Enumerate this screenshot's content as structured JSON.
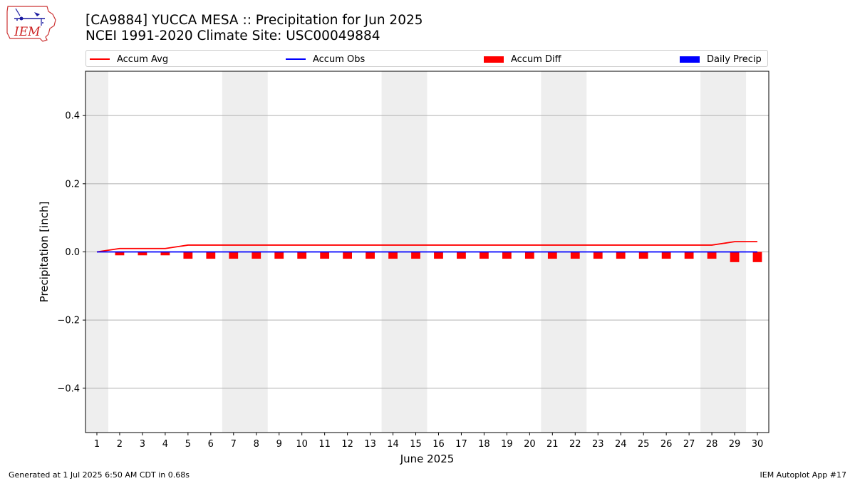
{
  "header": {
    "title_line1": "[CA9884] YUCCA MESA :: Precipitation for Jun 2025",
    "title_line2": "NCEI 1991-2020 Climate Site: USC00049884"
  },
  "logo": {
    "text": "IEM"
  },
  "legend": {
    "accum_avg": "Accum Avg",
    "accum_obs": "Accum Obs",
    "accum_diff": "Accum Diff",
    "daily_precip": "Daily Precip"
  },
  "colors": {
    "accum_avg": "#ff0000",
    "accum_obs": "#0000ff",
    "accum_diff": "#ff0000",
    "daily_precip": "#0000ff",
    "weekend_shade": "#eeeeee",
    "grid": "#b0b0b0"
  },
  "chart_data": {
    "type": "line",
    "xlabel": "June 2025",
    "ylabel": "Precipitation [inch]",
    "x": [
      1,
      2,
      3,
      4,
      5,
      6,
      7,
      8,
      9,
      10,
      11,
      12,
      13,
      14,
      15,
      16,
      17,
      18,
      19,
      20,
      21,
      22,
      23,
      24,
      25,
      26,
      27,
      28,
      29,
      30
    ],
    "xlim": [
      0.5,
      30.5
    ],
    "ylim": [
      -0.53,
      0.53
    ],
    "yticks": [
      -0.4,
      -0.2,
      0.0,
      0.2,
      0.4
    ],
    "ytick_labels": [
      "−0.4",
      "−0.2",
      "0.0",
      "0.2",
      "0.4"
    ],
    "grid": "horizontal",
    "legend_position": "top",
    "weekend_spans": [
      [
        0.5,
        1.5
      ],
      [
        6.5,
        8.5
      ],
      [
        13.5,
        15.5
      ],
      [
        20.5,
        22.5
      ],
      [
        27.5,
        29.5
      ]
    ],
    "series": [
      {
        "name": "Accum Avg",
        "kind": "line",
        "values": [
          0,
          0.01,
          0.01,
          0.01,
          0.02,
          0.02,
          0.02,
          0.02,
          0.02,
          0.02,
          0.02,
          0.02,
          0.02,
          0.02,
          0.02,
          0.02,
          0.02,
          0.02,
          0.02,
          0.02,
          0.02,
          0.02,
          0.02,
          0.02,
          0.02,
          0.02,
          0.02,
          0.02,
          0.03,
          0.03
        ]
      },
      {
        "name": "Accum Obs",
        "kind": "line",
        "values": [
          0,
          0,
          0,
          0,
          0,
          0,
          0,
          0,
          0,
          0,
          0,
          0,
          0,
          0,
          0,
          0,
          0,
          0,
          0,
          0,
          0,
          0,
          0,
          0,
          0,
          0,
          0,
          0,
          0,
          0
        ]
      },
      {
        "name": "Accum Diff",
        "kind": "bar",
        "values": [
          0,
          -0.01,
          -0.01,
          -0.01,
          -0.02,
          -0.02,
          -0.02,
          -0.02,
          -0.02,
          -0.02,
          -0.02,
          -0.02,
          -0.02,
          -0.02,
          -0.02,
          -0.02,
          -0.02,
          -0.02,
          -0.02,
          -0.02,
          -0.02,
          -0.02,
          -0.02,
          -0.02,
          -0.02,
          -0.02,
          -0.02,
          -0.02,
          -0.03,
          -0.03
        ]
      },
      {
        "name": "Daily Precip",
        "kind": "bar",
        "values": [
          0,
          0,
          0,
          0,
          0,
          0,
          0,
          0,
          0,
          0,
          0,
          0,
          0,
          0,
          0,
          0,
          0,
          0,
          0,
          0,
          0,
          0,
          0,
          0,
          0,
          0,
          0,
          0,
          0,
          0
        ]
      }
    ]
  },
  "footer": {
    "generated": "Generated at 1 Jul 2025 6:50 AM CDT in 0.68s",
    "app": "IEM Autoplot App #17"
  }
}
